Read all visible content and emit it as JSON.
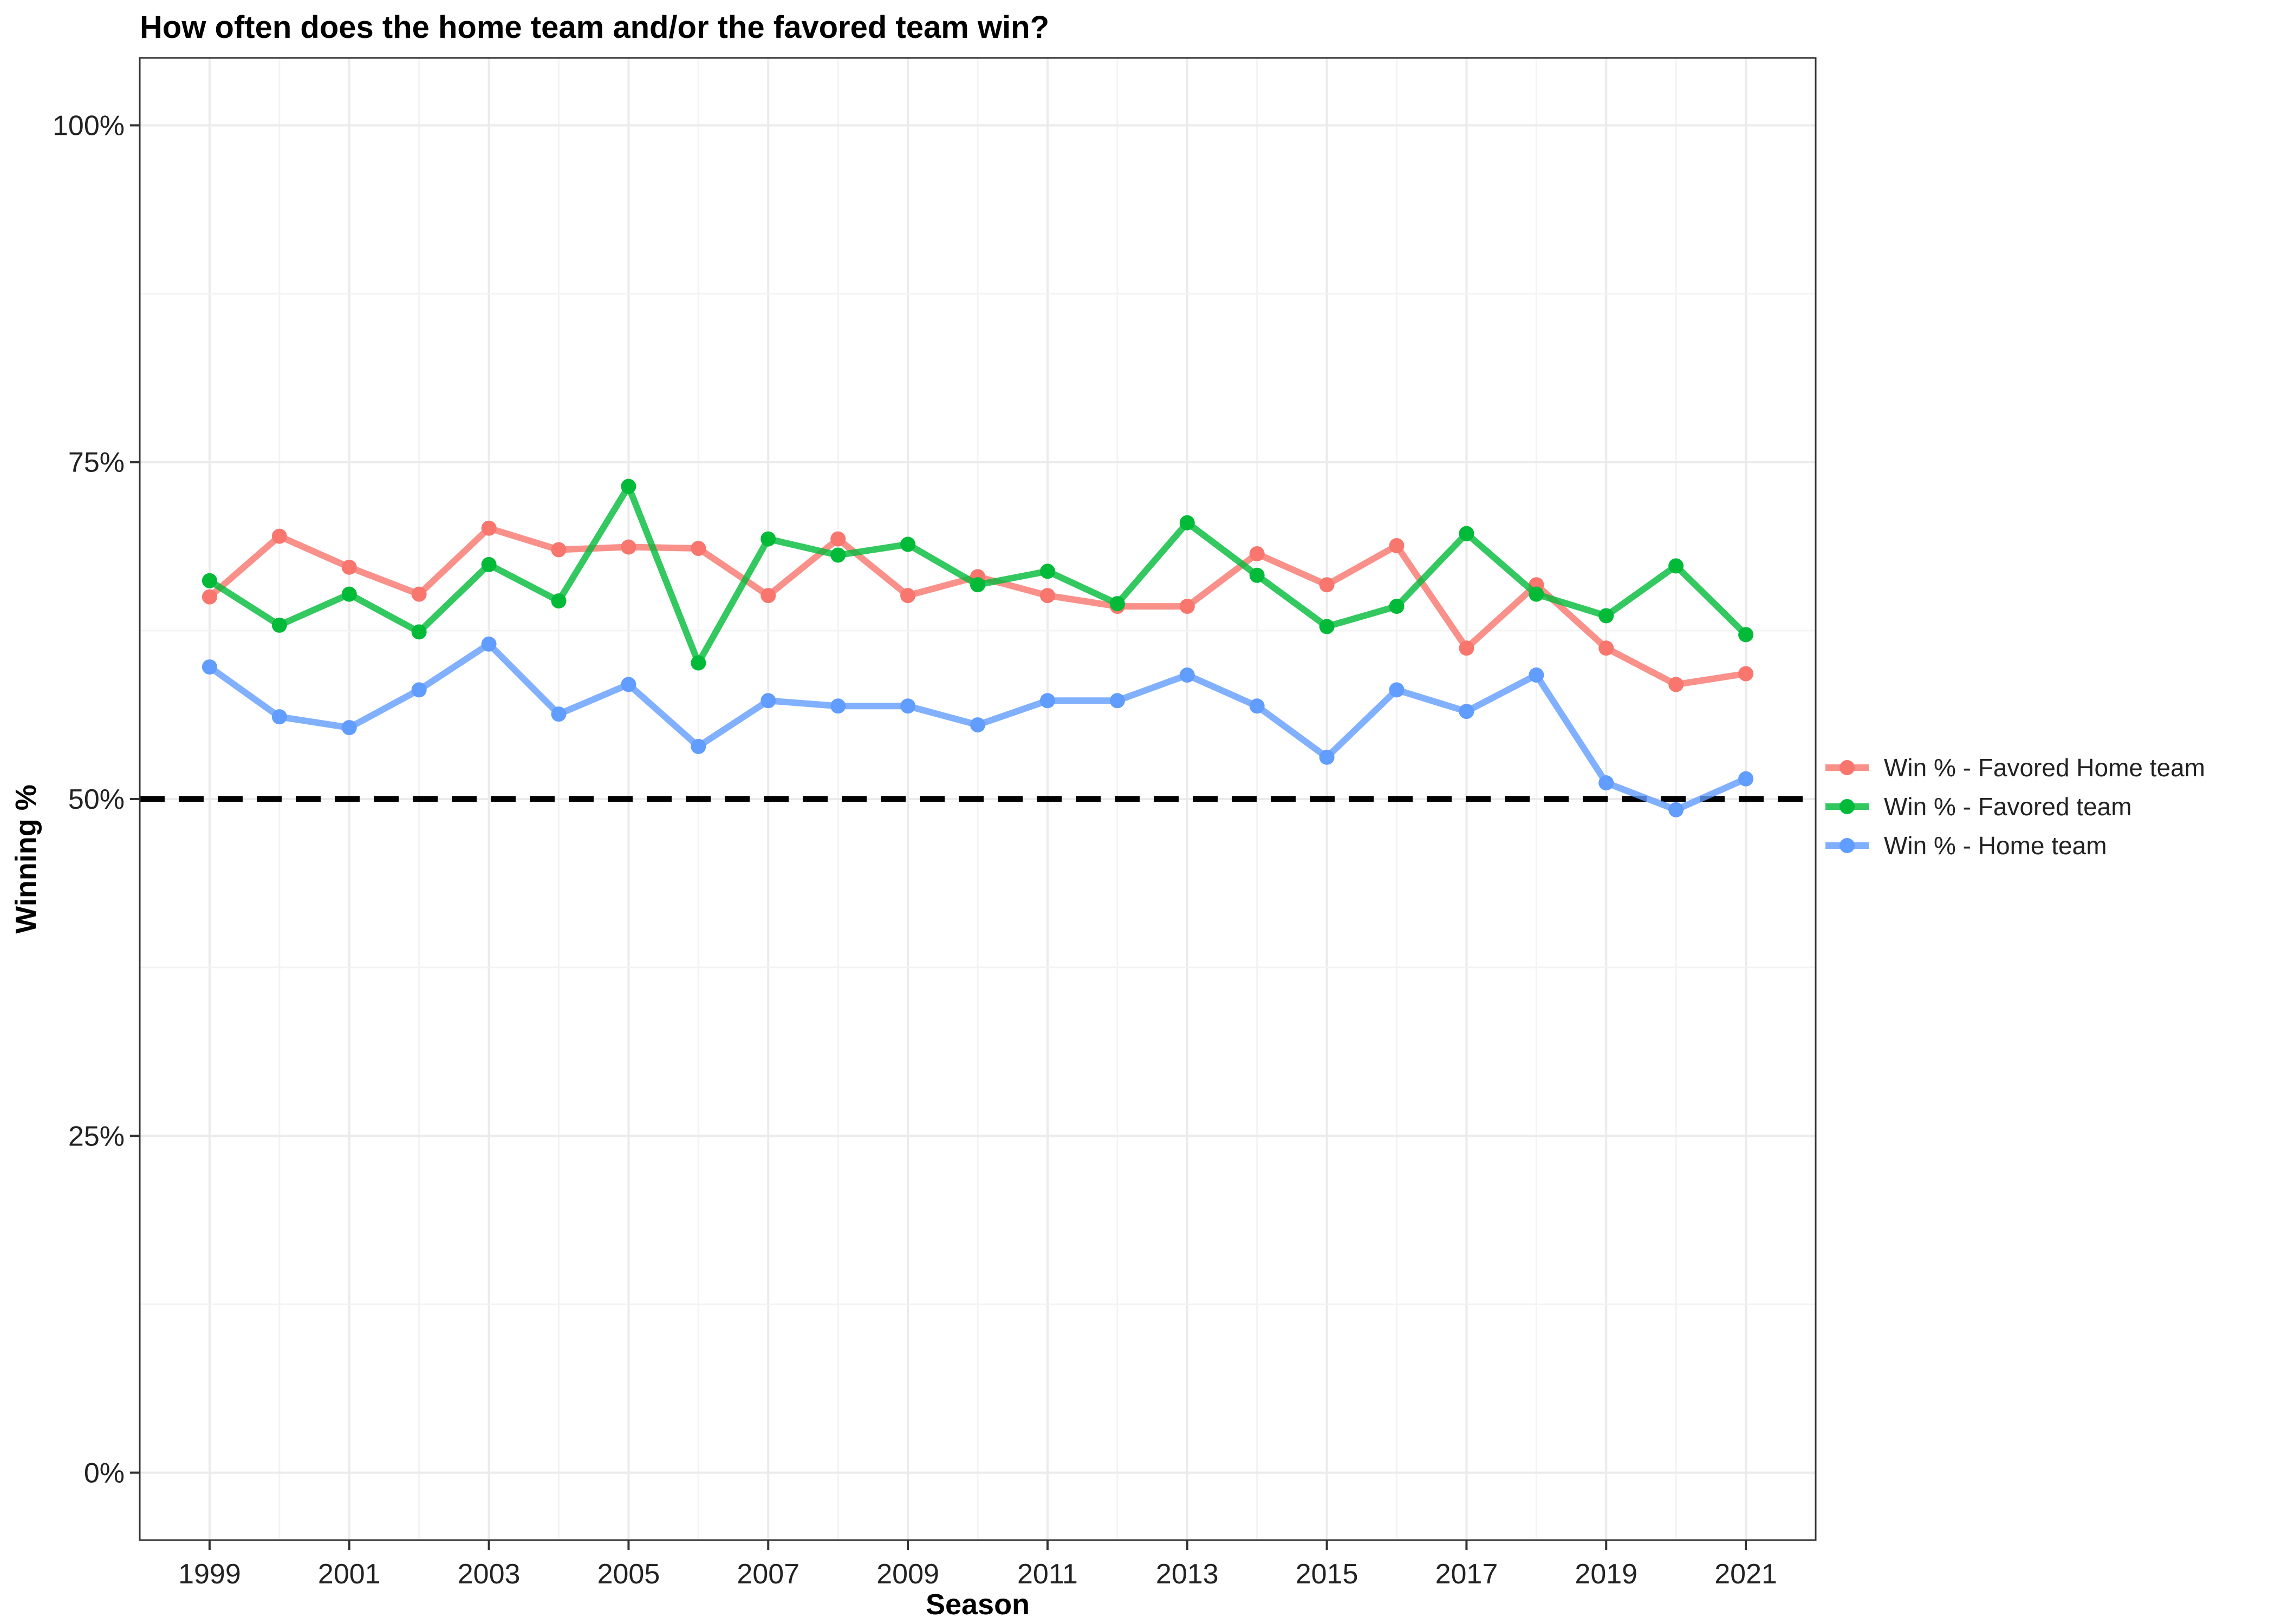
{
  "chart_data": {
    "type": "line",
    "title": "How often does the home team and/or the favored team win?",
    "xlabel": "Season",
    "ylabel": "Winning %",
    "xlim": [
      1998.0,
      2022.0
    ],
    "ylim": [
      -0.05,
      1.05
    ],
    "x_ticks": [
      1999,
      2001,
      2003,
      2005,
      2007,
      2009,
      2011,
      2013,
      2015,
      2017,
      2019,
      2021
    ],
    "x_tick_labels": [
      "1999",
      "2001",
      "2003",
      "2005",
      "2007",
      "2009",
      "2011",
      "2013",
      "2015",
      "2017",
      "2019",
      "2021"
    ],
    "y_ticks": [
      0,
      0.25,
      0.5,
      0.75,
      1.0
    ],
    "y_tick_labels": [
      "0%",
      "25%",
      "50%",
      "75%",
      "100%"
    ],
    "grid": true,
    "legend_position": "right",
    "reference_line": {
      "y": 0.5,
      "style": "dashed",
      "color": "#000000"
    },
    "x": [
      1999,
      2000,
      2001,
      2002,
      2003,
      2004,
      2005,
      2006,
      2007,
      2008,
      2009,
      2010,
      2011,
      2012,
      2013,
      2014,
      2015,
      2016,
      2017,
      2018,
      2019,
      2020,
      2021
    ],
    "series": [
      {
        "name": "Win % - Favored Home team",
        "color": "#F8766D",
        "values": [
          0.65,
          0.695,
          0.672,
          0.652,
          0.701,
          0.685,
          0.687,
          0.686,
          0.651,
          0.693,
          0.651,
          0.665,
          0.651,
          0.643,
          0.643,
          0.682,
          0.659,
          0.688,
          0.612,
          0.659,
          0.612,
          0.585,
          0.593
        ]
      },
      {
        "name": "Win % - Favored team",
        "color": "#00BA38",
        "values": [
          0.662,
          0.629,
          0.652,
          0.624,
          0.674,
          0.647,
          0.732,
          0.601,
          0.693,
          0.681,
          0.689,
          0.659,
          0.669,
          0.645,
          0.705,
          0.666,
          0.628,
          0.643,
          0.697,
          0.652,
          0.636,
          0.673,
          0.622
        ]
      },
      {
        "name": "Win % - Home team",
        "color": "#619CFF",
        "values": [
          0.598,
          0.561,
          0.553,
          0.581,
          0.615,
          0.563,
          0.585,
          0.539,
          0.573,
          0.569,
          0.569,
          0.555,
          0.573,
          0.573,
          0.592,
          0.569,
          0.531,
          0.581,
          0.565,
          0.592,
          0.512,
          0.492,
          0.515
        ]
      }
    ]
  }
}
